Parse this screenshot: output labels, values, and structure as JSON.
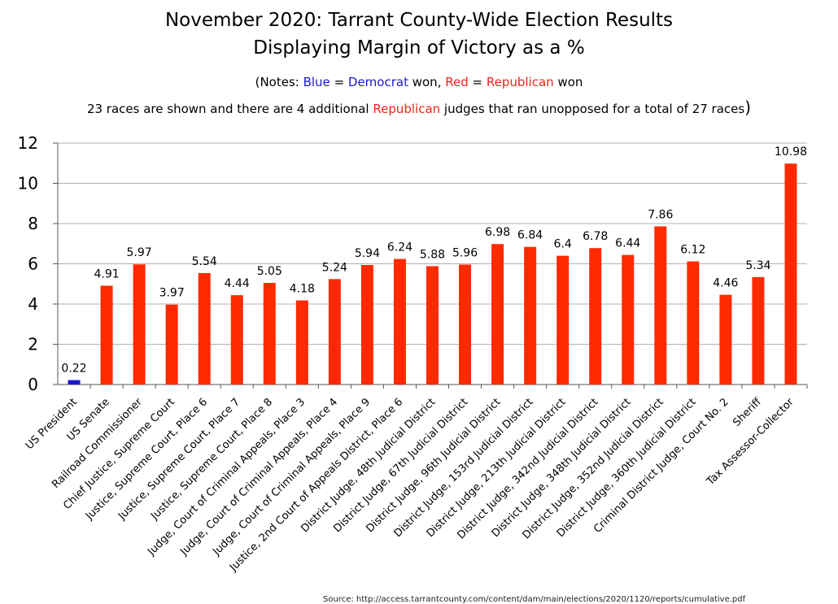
{
  "notes": {
    "open": "(Notes: ",
    "blue_word": "Blue",
    "eq1": " = ",
    "democrat": "Democrat",
    "won1": " won, ",
    "red_word": "Red",
    "eq2": " = ",
    "republican": "Republican",
    "won2": " won",
    "line2_a": "23 races are shown and there are 4 additional ",
    "line2_rep": "Republican",
    "line2_b": " judges that ran unopposed for a total of 27 races",
    "line2_close": ")"
  },
  "source": "Source:  http://access.tarrantcounty.com/content/dam/main/elections/2020/1120/reports/cumulative.pdf",
  "colors": {
    "democrat": "#1a1acc",
    "republican": "#ff2a00",
    "grid": "#b0b0b0"
  },
  "chart_data": {
    "type": "bar",
    "title": "November 2020:  Tarrant County-Wide Election Results",
    "subtitle": "Displaying Margin of Victory as a %",
    "xlabel": "",
    "ylabel": "",
    "ylim": [
      0,
      12
    ],
    "yticks": [
      "0",
      "2",
      "4",
      "6",
      "8",
      "10",
      "12"
    ],
    "grid": true,
    "categories": [
      "US President",
      "US Senate",
      "Railroad Commissioner",
      "Chief Justice, Supreme Court",
      "Justice, Supreme Court, Place 6",
      "Justice, Supreme Court, Place 7",
      "Justice, Supreme Court, Place 8",
      "Judge, Court of Criminal Appeals, Place 3",
      "Judge, Court of Criminal Appeals, Place 4",
      "Judge, Court of Criminal Appeals, Place 9",
      "Justice, 2nd Court of Appeals District, Place 6",
      "District Judge, 48th Judicial District",
      "District Judge, 67th Judicial District",
      "District Judge, 96th Judicial District",
      "District Judge, 153rd Judicial District",
      "District Judge, 213th Judicial District",
      "District Judge, 342nd Judicial District",
      "District Judge, 348th Judicial District",
      "District Judge, 352nd Judicial District",
      "District Judge, 360th Judicial District",
      "Criminal District Judge, Court No. 2",
      "Sheriff",
      "Tax Assessor-Collector"
    ],
    "values": [
      0.22,
      4.91,
      5.97,
      3.97,
      5.54,
      4.44,
      5.05,
      4.18,
      5.24,
      5.94,
      6.24,
      5.88,
      5.96,
      6.98,
      6.84,
      6.4,
      6.78,
      6.44,
      7.86,
      6.12,
      4.46,
      5.34,
      10.98
    ],
    "value_labels": [
      "0.22",
      "4.91",
      "5.97",
      "3.97",
      "5.54",
      "4.44",
      "5.05",
      "4.18",
      "5.24",
      "5.94",
      "6.24",
      "5.88",
      "5.96",
      "6.98",
      "6.84",
      "6.4",
      "6.78",
      "6.44",
      "7.86",
      "6.12",
      "4.46",
      "5.34",
      "10.98"
    ],
    "winners": [
      "Democrat",
      "Republican",
      "Republican",
      "Republican",
      "Republican",
      "Republican",
      "Republican",
      "Republican",
      "Republican",
      "Republican",
      "Republican",
      "Republican",
      "Republican",
      "Republican",
      "Republican",
      "Republican",
      "Republican",
      "Republican",
      "Republican",
      "Republican",
      "Republican",
      "Republican",
      "Republican"
    ]
  }
}
